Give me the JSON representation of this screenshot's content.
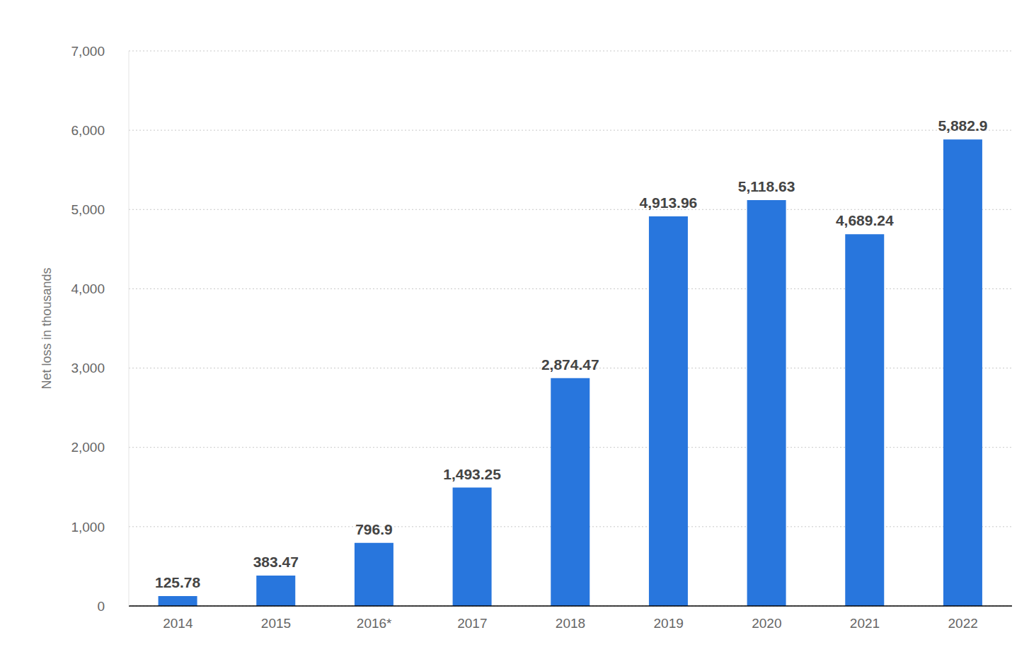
{
  "chart_data": {
    "type": "bar",
    "categories": [
      "2014",
      "2015",
      "2016*",
      "2017",
      "2018",
      "2019",
      "2020",
      "2021",
      "2022"
    ],
    "values": [
      125.78,
      383.47,
      796.9,
      1493.25,
      2874.47,
      4913.96,
      5118.63,
      4689.24,
      5882.9
    ],
    "value_labels": [
      "125.78",
      "383.47",
      "796.9",
      "1,493.25",
      "2,874.47",
      "4,913.96",
      "5,118.63",
      "4,689.24",
      "5,882.9"
    ],
    "y_label": "Net loss in thousands",
    "color": "#2876dd",
    "ylim": [
      0,
      7000
    ],
    "yticks": [
      0,
      {
        "value": 1000,
        "label": "1,000"
      },
      {
        "value": 2000,
        "label": "2,000"
      },
      {
        "value": 3000,
        "label": "3,000"
      },
      {
        "value": 4000,
        "label": "4,000"
      },
      {
        "value": 5000,
        "label": "5,000"
      },
      {
        "value": 6000,
        "label": "6,000"
      },
      {
        "value": 7000,
        "label": "7,000"
      }
    ],
    "grid": true,
    "data_labels": true
  }
}
